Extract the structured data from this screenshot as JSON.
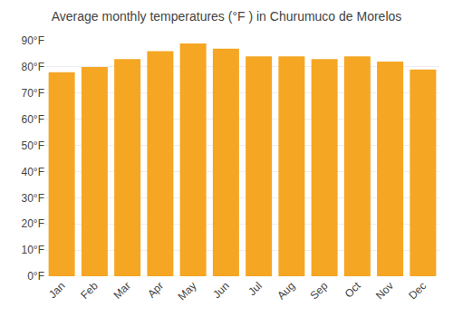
{
  "chart_data": {
    "type": "bar",
    "title": "Average monthly temperatures (°F ) in Churumuco de Morelos",
    "categories": [
      "Jan",
      "Feb",
      "Mar",
      "Apr",
      "May",
      "Jun",
      "Jul",
      "Aug",
      "Sep",
      "Oct",
      "Nov",
      "Dec"
    ],
    "values": [
      78,
      80,
      83,
      86,
      89,
      87,
      84,
      84,
      83,
      84,
      82,
      79
    ],
    "color": "#F5A623",
    "ylim": [
      0,
      90
    ],
    "yticks": [
      {
        "value": 0,
        "label": "0°F"
      },
      {
        "value": 10,
        "label": "10°F"
      },
      {
        "value": 20,
        "label": "20°F"
      },
      {
        "value": 30,
        "label": "30°F"
      },
      {
        "value": 40,
        "label": "40°F"
      },
      {
        "value": 50,
        "label": "50°F"
      },
      {
        "value": 60,
        "label": "60°F"
      },
      {
        "value": 70,
        "label": "70°F"
      },
      {
        "value": 80,
        "label": "80°F"
      },
      {
        "value": 90,
        "label": "90°F"
      }
    ],
    "grid": true
  }
}
